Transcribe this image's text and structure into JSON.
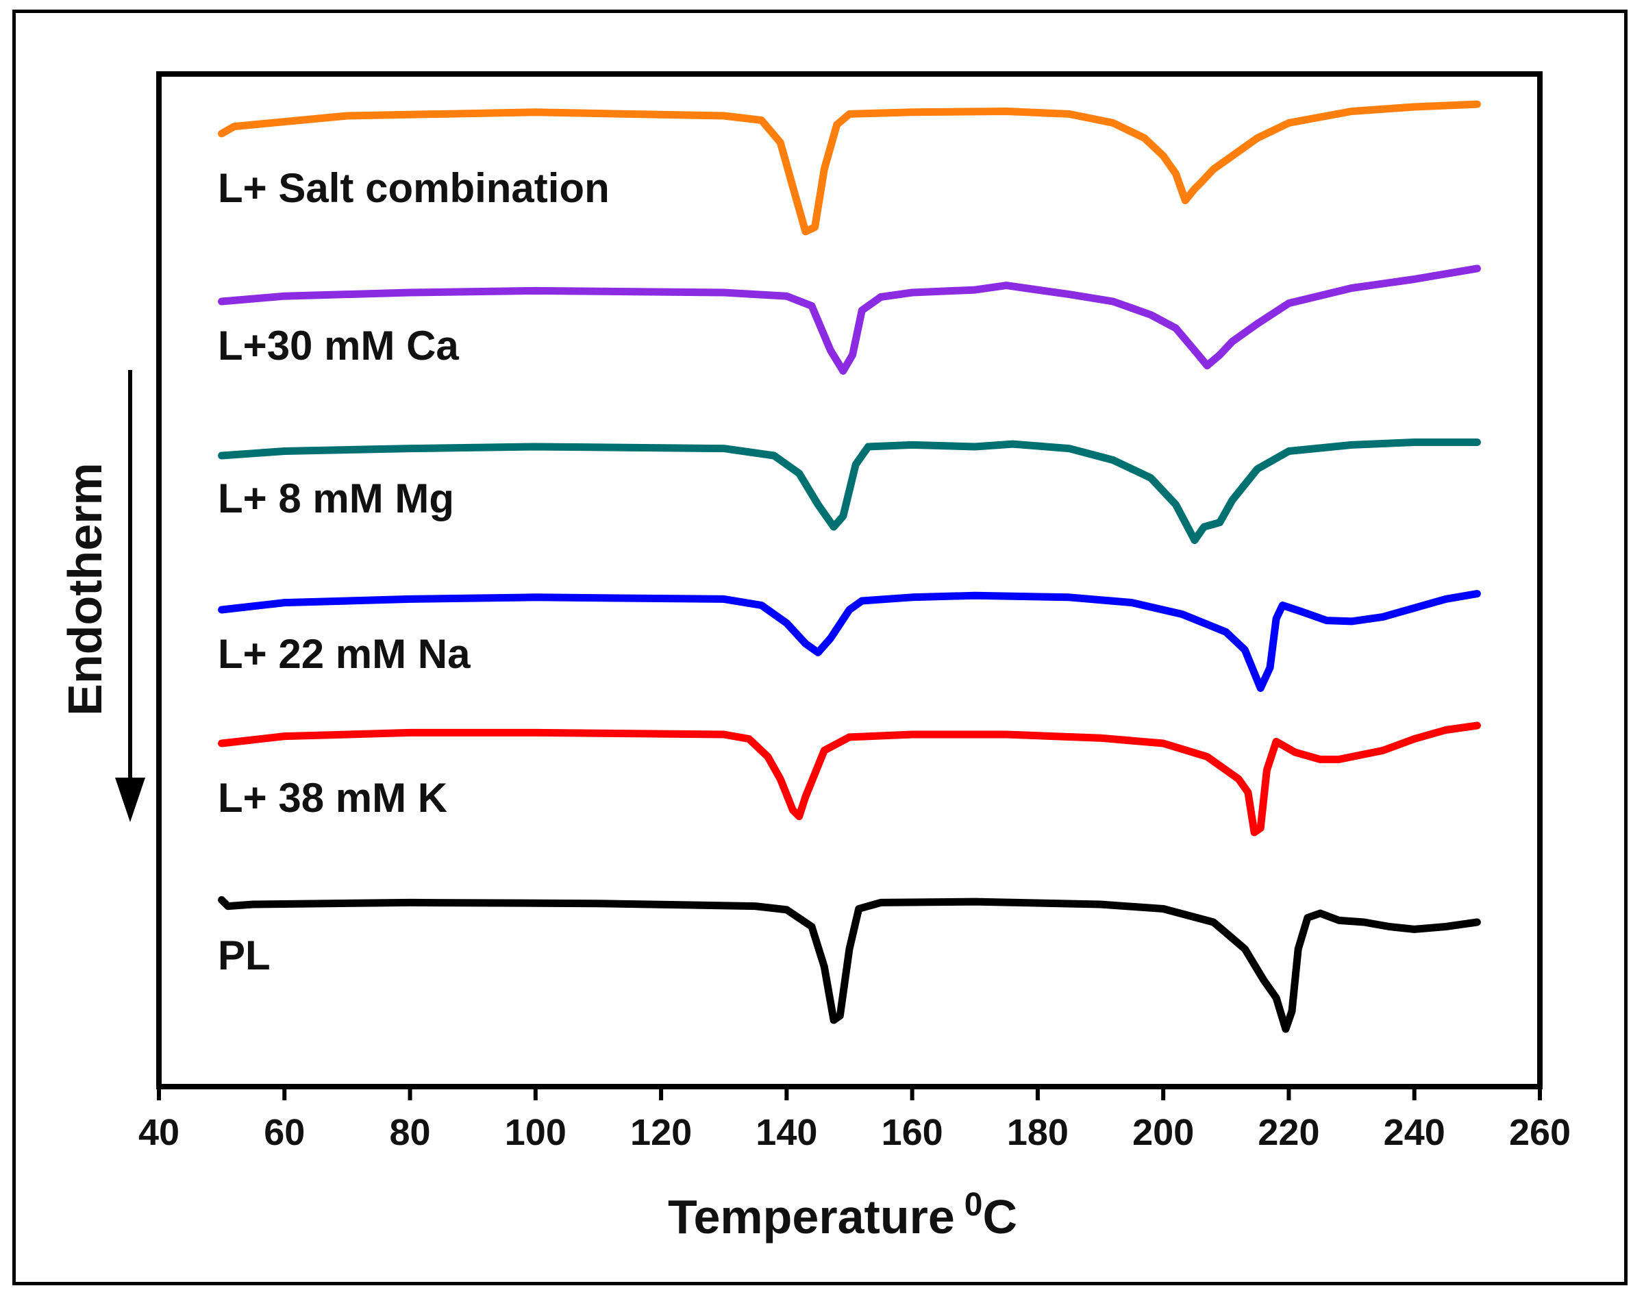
{
  "chart_data": {
    "type": "line",
    "title": "",
    "xlabel": "Temperature",
    "xlabel_superscript": "0",
    "xlabel_unit": "C",
    "ylabel": "Endotherm",
    "xlim": [
      40,
      260
    ],
    "x_ticks": [
      40,
      60,
      80,
      100,
      120,
      140,
      160,
      180,
      200,
      220,
      240,
      260
    ],
    "y_ticks_shown": false,
    "grid": false,
    "series": [
      {
        "name": "L+ Salt combination",
        "color": "#ff7f0e",
        "offset": 5,
        "points": [
          [
            50,
            0.0
          ],
          [
            52,
            0.08
          ],
          [
            70,
            0.2
          ],
          [
            100,
            0.24
          ],
          [
            130,
            0.2
          ],
          [
            136,
            0.15
          ],
          [
            139,
            -0.1
          ],
          [
            141,
            -0.6
          ],
          [
            143,
            -1.1
          ],
          [
            144.5,
            -1.05
          ],
          [
            146,
            -0.4
          ],
          [
            148,
            0.1
          ],
          [
            150,
            0.22
          ],
          [
            160,
            0.24
          ],
          [
            175,
            0.25
          ],
          [
            185,
            0.22
          ],
          [
            192,
            0.12
          ],
          [
            197,
            -0.05
          ],
          [
            200,
            -0.25
          ],
          [
            202,
            -0.45
          ],
          [
            203.5,
            -0.75
          ],
          [
            205,
            -0.62
          ],
          [
            206,
            -0.55
          ],
          [
            208,
            -0.4
          ],
          [
            210,
            -0.3
          ],
          [
            215,
            -0.05
          ],
          [
            220,
            0.12
          ],
          [
            230,
            0.25
          ],
          [
            240,
            0.3
          ],
          [
            250,
            0.33
          ]
        ]
      },
      {
        "name": "L+30 mM Ca",
        "color": "#8b2be2",
        "offset": 4,
        "points": [
          [
            50,
            0.0
          ],
          [
            60,
            0.06
          ],
          [
            80,
            0.1
          ],
          [
            100,
            0.12
          ],
          [
            130,
            0.1
          ],
          [
            140,
            0.06
          ],
          [
            144,
            -0.05
          ],
          [
            147,
            -0.55
          ],
          [
            149,
            -0.78
          ],
          [
            150.5,
            -0.6
          ],
          [
            152,
            -0.1
          ],
          [
            155,
            0.05
          ],
          [
            160,
            0.1
          ],
          [
            170,
            0.13
          ],
          [
            175,
            0.18
          ],
          [
            178,
            0.15
          ],
          [
            185,
            0.08
          ],
          [
            192,
            0.0
          ],
          [
            198,
            -0.15
          ],
          [
            202,
            -0.3
          ],
          [
            205,
            -0.55
          ],
          [
            207,
            -0.72
          ],
          [
            209,
            -0.6
          ],
          [
            211,
            -0.45
          ],
          [
            215,
            -0.25
          ],
          [
            220,
            -0.02
          ],
          [
            230,
            0.15
          ],
          [
            240,
            0.25
          ],
          [
            250,
            0.37
          ]
        ]
      },
      {
        "name": "L+ 8 mM Mg",
        "color": "#007070",
        "offset": 3,
        "points": [
          [
            50,
            0.0
          ],
          [
            60,
            0.05
          ],
          [
            80,
            0.08
          ],
          [
            100,
            0.1
          ],
          [
            130,
            0.08
          ],
          [
            138,
            0.0
          ],
          [
            142,
            -0.2
          ],
          [
            145,
            -0.55
          ],
          [
            147.5,
            -0.8
          ],
          [
            149,
            -0.68
          ],
          [
            151,
            -0.1
          ],
          [
            153,
            0.1
          ],
          [
            160,
            0.12
          ],
          [
            170,
            0.1
          ],
          [
            176,
            0.13
          ],
          [
            185,
            0.08
          ],
          [
            192,
            -0.05
          ],
          [
            198,
            -0.25
          ],
          [
            202,
            -0.55
          ],
          [
            205,
            -0.95
          ],
          [
            206.5,
            -0.8
          ],
          [
            207.5,
            -0.78
          ],
          [
            209,
            -0.75
          ],
          [
            211,
            -0.5
          ],
          [
            215,
            -0.15
          ],
          [
            220,
            0.05
          ],
          [
            230,
            0.12
          ],
          [
            240,
            0.15
          ],
          [
            250,
            0.15
          ]
        ]
      },
      {
        "name": "L+ 22 mM Na",
        "color": "#0000ff",
        "offset": 2,
        "points": [
          [
            50,
            0.0
          ],
          [
            60,
            0.08
          ],
          [
            80,
            0.12
          ],
          [
            100,
            0.14
          ],
          [
            130,
            0.12
          ],
          [
            136,
            0.05
          ],
          [
            140,
            -0.15
          ],
          [
            143,
            -0.38
          ],
          [
            145,
            -0.48
          ],
          [
            147,
            -0.32
          ],
          [
            150,
            0.0
          ],
          [
            152,
            0.1
          ],
          [
            160,
            0.14
          ],
          [
            170,
            0.16
          ],
          [
            185,
            0.14
          ],
          [
            195,
            0.08
          ],
          [
            203,
            -0.05
          ],
          [
            210,
            -0.25
          ],
          [
            213,
            -0.45
          ],
          [
            215.5,
            -0.88
          ],
          [
            217,
            -0.65
          ],
          [
            218,
            -0.1
          ],
          [
            219,
            0.05
          ],
          [
            222,
            -0.02
          ],
          [
            226,
            -0.12
          ],
          [
            230,
            -0.13
          ],
          [
            235,
            -0.08
          ],
          [
            240,
            0.02
          ],
          [
            245,
            0.12
          ],
          [
            250,
            0.18
          ]
        ]
      },
      {
        "name": "L+ 38 mM K",
        "color": "#ff0000",
        "offset": 1,
        "points": [
          [
            50,
            0.0
          ],
          [
            60,
            0.08
          ],
          [
            80,
            0.12
          ],
          [
            100,
            0.12
          ],
          [
            130,
            0.1
          ],
          [
            134,
            0.05
          ],
          [
            137,
            -0.15
          ],
          [
            139,
            -0.4
          ],
          [
            141,
            -0.75
          ],
          [
            142,
            -0.82
          ],
          [
            143,
            -0.6
          ],
          [
            146,
            -0.08
          ],
          [
            150,
            0.07
          ],
          [
            160,
            0.1
          ],
          [
            175,
            0.1
          ],
          [
            190,
            0.06
          ],
          [
            200,
            0.0
          ],
          [
            207,
            -0.15
          ],
          [
            212,
            -0.4
          ],
          [
            213.5,
            -0.55
          ],
          [
            214.5,
            -1.0
          ],
          [
            215.5,
            -0.95
          ],
          [
            216.5,
            -0.3
          ],
          [
            218,
            0.02
          ],
          [
            221,
            -0.1
          ],
          [
            225,
            -0.18
          ],
          [
            228,
            -0.18
          ],
          [
            235,
            -0.08
          ],
          [
            240,
            0.05
          ],
          [
            245,
            0.15
          ],
          [
            250,
            0.2
          ]
        ]
      },
      {
        "name": "PL",
        "color": "#000000",
        "offset": 0,
        "points": [
          [
            50,
            0.05
          ],
          [
            51,
            -0.02
          ],
          [
            55,
            0.0
          ],
          [
            80,
            0.02
          ],
          [
            110,
            0.01
          ],
          [
            135,
            -0.02
          ],
          [
            140,
            -0.06
          ],
          [
            144,
            -0.25
          ],
          [
            146,
            -0.7
          ],
          [
            147.5,
            -1.3
          ],
          [
            148.5,
            -1.25
          ],
          [
            150,
            -0.5
          ],
          [
            151.5,
            -0.05
          ],
          [
            155,
            0.02
          ],
          [
            170,
            0.03
          ],
          [
            190,
            0.0
          ],
          [
            200,
            -0.05
          ],
          [
            208,
            -0.2
          ],
          [
            213,
            -0.5
          ],
          [
            216,
            -0.85
          ],
          [
            218,
            -1.05
          ],
          [
            219.5,
            -1.4
          ],
          [
            220.5,
            -1.2
          ],
          [
            221.5,
            -0.5
          ],
          [
            223,
            -0.15
          ],
          [
            225,
            -0.1
          ],
          [
            228,
            -0.18
          ],
          [
            232,
            -0.2
          ],
          [
            236,
            -0.25
          ],
          [
            240,
            -0.28
          ],
          [
            245,
            -0.25
          ],
          [
            250,
            -0.2
          ]
        ]
      }
    ]
  }
}
